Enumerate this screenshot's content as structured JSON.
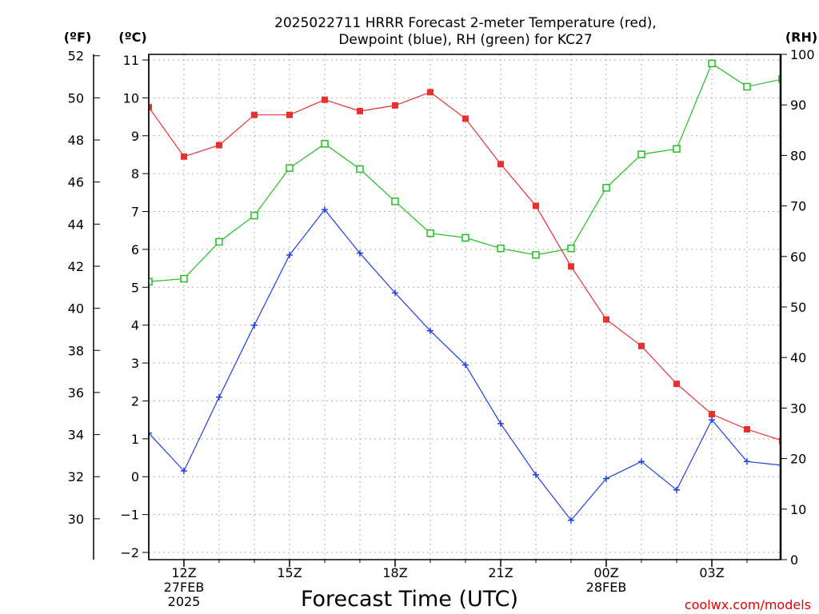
{
  "chart_data": {
    "type": "line",
    "title_lines": [
      "2025022711 HRRR Forecast 2-meter Temperature (red),",
      "Dewpoint (blue), RH (green) for KC27"
    ],
    "xlabel": "Forecast Time (UTC)",
    "credit": "coolwx.com/models",
    "units": {
      "fahrenheit": "(ºF)",
      "celsius": "(ºC)",
      "rh": "(RH)"
    },
    "hours": [
      11,
      12,
      13,
      14,
      15,
      16,
      17,
      18,
      19,
      20,
      21,
      22,
      23,
      24,
      25,
      26,
      27,
      28,
      29
    ],
    "x_ticks": [
      {
        "hour": 12,
        "lines": [
          "12Z",
          "27FEB",
          "2025"
        ]
      },
      {
        "hour": 15,
        "lines": [
          "15Z"
        ]
      },
      {
        "hour": 18,
        "lines": [
          "18Z"
        ]
      },
      {
        "hour": 21,
        "lines": [
          "21Z"
        ]
      },
      {
        "hour": 24,
        "lines": [
          "00Z",
          "28FEB"
        ]
      },
      {
        "hour": 27,
        "lines": [
          "03Z"
        ]
      }
    ],
    "celsius_axis": {
      "min": -2,
      "max": 11,
      "ticks": [
        "-2",
        "-1",
        "0",
        "1",
        "2",
        "3",
        "4",
        "5",
        "6",
        "7",
        "8",
        "9",
        "10",
        "11"
      ]
    },
    "fahrenheit_axis": {
      "ticks": [
        "30",
        "32",
        "34",
        "36",
        "38",
        "40",
        "42",
        "44",
        "46",
        "48",
        "50",
        "52"
      ]
    },
    "rh_axis": {
      "min": 0,
      "max": 100,
      "ticks": [
        "0",
        "10",
        "20",
        "30",
        "40",
        "50",
        "60",
        "70",
        "80",
        "90",
        "100"
      ]
    },
    "grid": true,
    "series": [
      {
        "key": "temperature",
        "axis": "celsius",
        "color": "#e83030",
        "marker": "filled-square",
        "values": [
          9.75,
          8.45,
          8.75,
          9.55,
          9.55,
          9.95,
          9.65,
          9.8,
          10.15,
          9.45,
          8.25,
          7.15,
          5.55,
          4.15,
          3.45,
          2.45,
          1.65,
          1.25,
          0.95
        ]
      },
      {
        "key": "dewpoint",
        "axis": "celsius",
        "color": "#2040e0",
        "marker": "plus",
        "values": [
          1.15,
          0.15,
          2.1,
          4.0,
          5.85,
          7.05,
          5.9,
          4.85,
          3.85,
          2.95,
          1.4,
          0.05,
          -1.15,
          -0.05,
          0.4,
          -0.35,
          1.5,
          0.4,
          0.3
        ]
      },
      {
        "key": "rh",
        "axis": "rh",
        "color": "#20c020",
        "marker": "open-square",
        "values": [
          55,
          55.6,
          62.9,
          68.1,
          77.5,
          82.3,
          77.3,
          70.9,
          64.6,
          63.7,
          61.6,
          60.3,
          61.6,
          73.6,
          80.2,
          81.3,
          98.2,
          93.6,
          95.1
        ]
      }
    ]
  }
}
